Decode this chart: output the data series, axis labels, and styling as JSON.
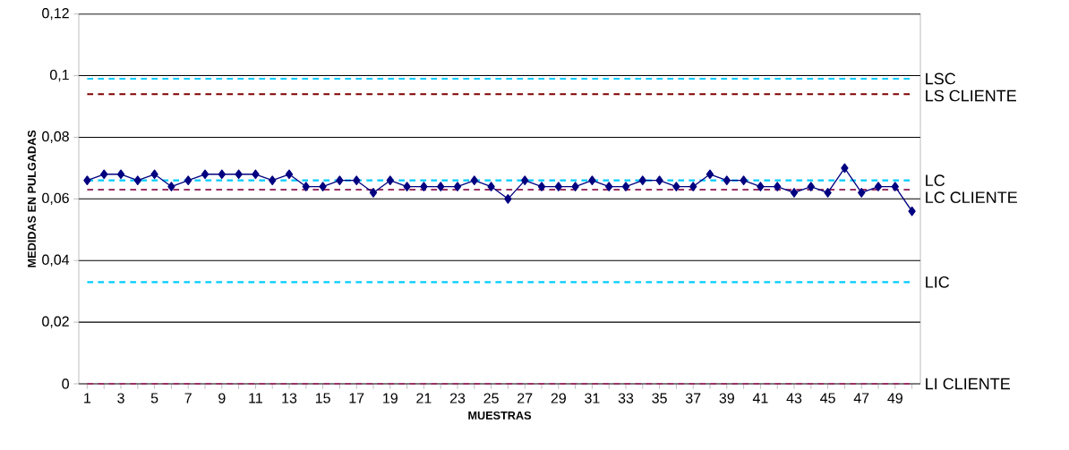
{
  "chart_data": {
    "type": "line",
    "xlabel": "MUESTRAS",
    "ylabel": "MEDIDAS EN PULGADAS",
    "categories": [
      "1",
      null,
      "3",
      null,
      "5",
      null,
      "7",
      null,
      "9",
      null,
      "11",
      null,
      "13",
      null,
      "15",
      null,
      "17",
      null,
      "19",
      null,
      "21",
      null,
      "23",
      null,
      "25",
      null,
      "27",
      null,
      "29",
      null,
      "31",
      null,
      "33",
      null,
      "35",
      null,
      "37",
      null,
      "39",
      null,
      "41",
      null,
      "43",
      null,
      "45",
      null,
      "47",
      null,
      "49",
      null
    ],
    "series": [
      {
        "color": "#000080",
        "values": [
          0.066,
          0.068,
          0.068,
          0.066,
          0.068,
          0.064,
          0.066,
          0.068,
          0.068,
          0.068,
          0.068,
          0.066,
          0.068,
          0.064,
          0.064,
          0.066,
          0.066,
          0.062,
          0.066,
          0.064,
          0.064,
          0.064,
          0.064,
          0.066,
          0.064,
          0.06,
          0.066,
          0.064,
          0.064,
          0.064,
          0.066,
          0.064,
          0.064,
          0.066,
          0.066,
          0.064,
          0.064,
          0.068,
          0.066,
          0.066,
          0.064,
          0.064,
          0.062,
          0.064,
          0.062,
          0.07,
          0.062,
          0.064,
          0.064,
          0.056
        ]
      }
    ],
    "ylim": [
      0,
      0.12
    ],
    "yticks": [
      0,
      {
        "value": 0.02,
        "label": "0,02"
      },
      {
        "value": 0.04,
        "label": "0,04"
      },
      {
        "value": 0.06,
        "label": "0,06"
      },
      {
        "value": 0.08,
        "label": "0,08"
      },
      {
        "value": 0.1,
        "label": "0,1"
      },
      {
        "value": 0.12,
        "label": "0,12"
      }
    ],
    "ref_lines": [
      {
        "axis": "y",
        "value": 0.099,
        "label": "LSC",
        "color": "#00ccff",
        "line_style": "dashed"
      },
      {
        "axis": "y",
        "value": 0.094,
        "label": "LS CLIENTE",
        "color": "#800000",
        "line_style": "dashed"
      },
      {
        "axis": "y",
        "value": 0.066,
        "label": "LC",
        "color": "#00ccff",
        "line_style": "dashed"
      },
      {
        "axis": "y",
        "value": 0.063,
        "label": "LC CLIENTE",
        "color": "#993366",
        "line_style": "dashed"
      },
      {
        "axis": "y",
        "value": 0.033,
        "label": "LIC",
        "color": "#00ccff",
        "line_style": "dashed"
      },
      {
        "axis": "y",
        "value": 0,
        "label": "LI CLIENTE",
        "color": "#993366",
        "line_style": "dashed"
      }
    ],
    "grid": "y",
    "marker": "diamond",
    "line_style": "solid"
  }
}
